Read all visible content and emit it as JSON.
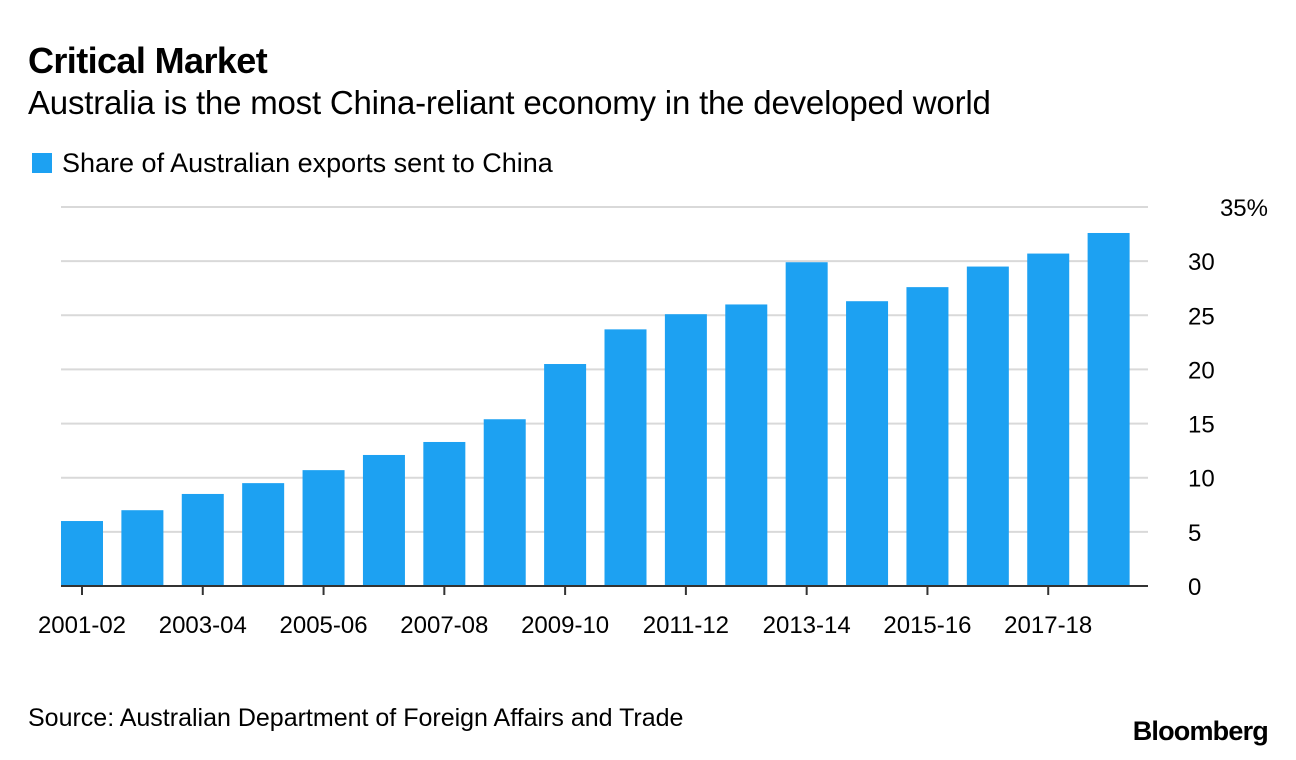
{
  "header": {
    "title": "Critical Market",
    "subtitle": "Australia is the most China-reliant economy in the developed world"
  },
  "footer": {
    "source": "Source: Australian Department of Foreign Affairs and Trade",
    "brand": "Bloomberg"
  },
  "colors": {
    "bar": "#1da1f2",
    "grid": "#d9d9d9",
    "axis": "#333333",
    "text": "#000000"
  },
  "chart_data": {
    "type": "bar",
    "title": "Critical Market",
    "subtitle": "Australia is the most China-reliant economy in the developed world",
    "xlabel": "",
    "ylabel": "",
    "y_axis_side": "right",
    "ylim": [
      0,
      35
    ],
    "yticks": [
      0,
      5,
      10,
      15,
      20,
      25,
      30,
      35
    ],
    "ytick_labels": [
      "0",
      "5",
      "10",
      "15",
      "20",
      "25",
      "30",
      "35%"
    ],
    "grid": true,
    "legend": {
      "position": "top-left",
      "entries": [
        "Share of Australian exports sent to China"
      ]
    },
    "categories": [
      "2001-02",
      "2002-03",
      "2003-04",
      "2004-05",
      "2005-06",
      "2006-07",
      "2007-08",
      "2008-09",
      "2009-10",
      "2010-11",
      "2011-12",
      "2012-13",
      "2013-14",
      "2014-15",
      "2015-16",
      "2016-17",
      "2017-18",
      "2018-19"
    ],
    "xtick_labels": [
      "2001-02",
      "",
      "2003-04",
      "",
      "2005-06",
      "",
      "2007-08",
      "",
      "2009-10",
      "",
      "2011-12",
      "",
      "2013-14",
      "",
      "2015-16",
      "",
      "2017-18",
      ""
    ],
    "series": [
      {
        "name": "Share of Australian exports sent to China",
        "values": [
          6.0,
          7.0,
          8.5,
          9.5,
          10.7,
          12.1,
          13.3,
          15.4,
          20.5,
          23.7,
          25.1,
          26.0,
          29.9,
          26.3,
          27.6,
          29.5,
          30.7,
          32.6
        ]
      }
    ]
  }
}
